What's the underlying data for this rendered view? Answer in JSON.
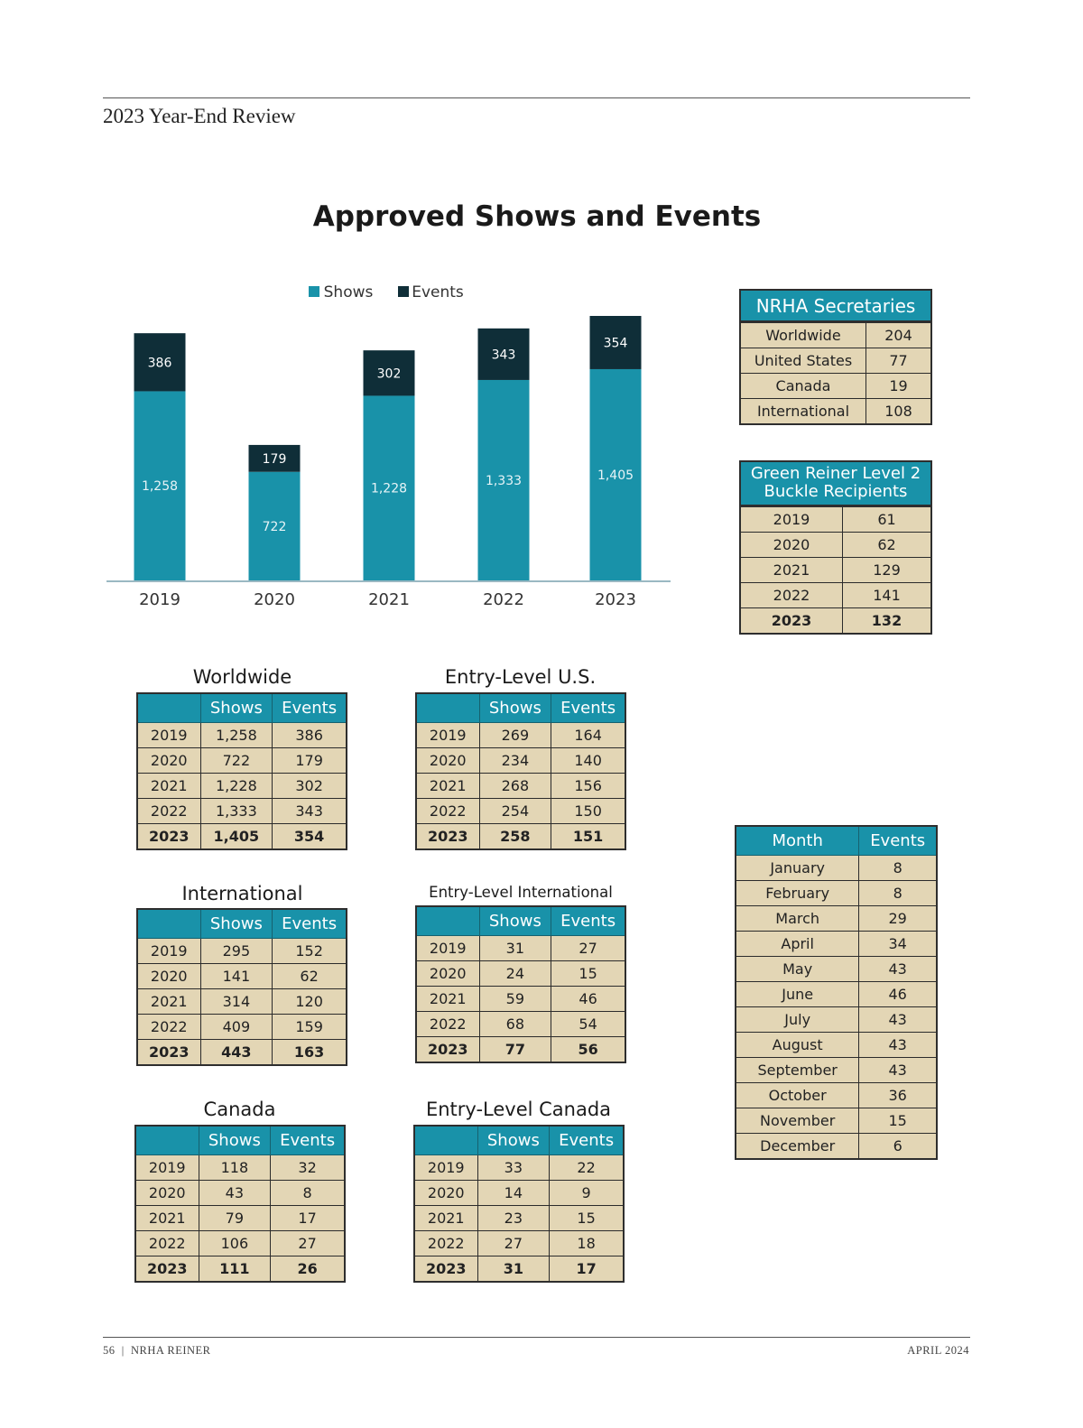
{
  "header": {
    "section": "2023 Year-End Review"
  },
  "title": "Approved Shows and Events",
  "colors": {
    "shows": "#1992a9",
    "events": "#0f2e38",
    "cell": "#e3d6b5",
    "header": "#1992a9"
  },
  "chart_data": {
    "type": "bar",
    "stacked": true,
    "categories": [
      "2019",
      "2020",
      "2021",
      "2022",
      "2023"
    ],
    "series": [
      {
        "name": "Shows",
        "values": [
          1258,
          722,
          1228,
          1333,
          1405
        ],
        "labels": [
          "1,258",
          "722",
          "1,228",
          "1,333",
          "1,405"
        ]
      },
      {
        "name": "Events",
        "values": [
          386,
          179,
          302,
          343,
          354
        ],
        "labels": [
          "386",
          "179",
          "302",
          "343",
          "354"
        ]
      }
    ],
    "legend": "top-center",
    "ylim": [
      0,
      1800
    ],
    "grid": false
  },
  "secretaries": {
    "title": "NRHA Secretaries",
    "rows": [
      [
        "Worldwide",
        "204"
      ],
      [
        "United States",
        "77"
      ],
      [
        "Canada",
        "19"
      ],
      [
        "International",
        "108"
      ]
    ]
  },
  "buckle": {
    "title_line1": "Green Reiner Level 2",
    "title_line2": "Buckle Recipients",
    "rows": [
      [
        "2019",
        "61"
      ],
      [
        "2020",
        "62"
      ],
      [
        "2021",
        "129"
      ],
      [
        "2022",
        "141"
      ],
      [
        "2023",
        "132"
      ]
    ]
  },
  "tables": [
    {
      "id": "worldwide",
      "title": "Worldwide",
      "headers": [
        "",
        "Shows",
        "Events"
      ],
      "rows": [
        [
          "2019",
          "1,258",
          "386"
        ],
        [
          "2020",
          "722",
          "179"
        ],
        [
          "2021",
          "1,228",
          "302"
        ],
        [
          "2022",
          "1,333",
          "343"
        ],
        [
          "2023",
          "1,405",
          "354"
        ]
      ]
    },
    {
      "id": "entry-us",
      "title": "Entry-Level U.S.",
      "headers": [
        "",
        "Shows",
        "Events"
      ],
      "rows": [
        [
          "2019",
          "269",
          "164"
        ],
        [
          "2020",
          "234",
          "140"
        ],
        [
          "2021",
          "268",
          "156"
        ],
        [
          "2022",
          "254",
          "150"
        ],
        [
          "2023",
          "258",
          "151"
        ]
      ]
    },
    {
      "id": "international",
      "title": "International",
      "headers": [
        "",
        "Shows",
        "Events"
      ],
      "rows": [
        [
          "2019",
          "295",
          "152"
        ],
        [
          "2020",
          "141",
          "62"
        ],
        [
          "2021",
          "314",
          "120"
        ],
        [
          "2022",
          "409",
          "159"
        ],
        [
          "2023",
          "443",
          "163"
        ]
      ]
    },
    {
      "id": "entry-international",
      "title": "Entry-Level International",
      "headers": [
        "",
        "Shows",
        "Events"
      ],
      "rows": [
        [
          "2019",
          "31",
          "27"
        ],
        [
          "2020",
          "24",
          "15"
        ],
        [
          "2021",
          "59",
          "46"
        ],
        [
          "2022",
          "68",
          "54"
        ],
        [
          "2023",
          "77",
          "56"
        ]
      ]
    },
    {
      "id": "canada",
      "title": "Canada",
      "headers": [
        "",
        "Shows",
        "Events"
      ],
      "rows": [
        [
          "2019",
          "118",
          "32"
        ],
        [
          "2020",
          "43",
          "8"
        ],
        [
          "2021",
          "79",
          "17"
        ],
        [
          "2022",
          "106",
          "27"
        ],
        [
          "2023",
          "111",
          "26"
        ]
      ]
    },
    {
      "id": "entry-canada",
      "title": "Entry-Level Canada",
      "headers": [
        "",
        "Shows",
        "Events"
      ],
      "rows": [
        [
          "2019",
          "33",
          "22"
        ],
        [
          "2020",
          "14",
          "9"
        ],
        [
          "2021",
          "23",
          "15"
        ],
        [
          "2022",
          "27",
          "18"
        ],
        [
          "2023",
          "31",
          "17"
        ]
      ]
    }
  ],
  "months": {
    "headers": [
      "Month",
      "Events"
    ],
    "rows": [
      [
        "January",
        "8"
      ],
      [
        "February",
        "8"
      ],
      [
        "March",
        "29"
      ],
      [
        "April",
        "34"
      ],
      [
        "May",
        "43"
      ],
      [
        "June",
        "46"
      ],
      [
        "July",
        "43"
      ],
      [
        "August",
        "43"
      ],
      [
        "September",
        "43"
      ],
      [
        "October",
        "36"
      ],
      [
        "November",
        "15"
      ],
      [
        "December",
        "6"
      ]
    ]
  },
  "footer": {
    "left": "56  |  NRHA REINER",
    "right": "APRIL 2024"
  }
}
